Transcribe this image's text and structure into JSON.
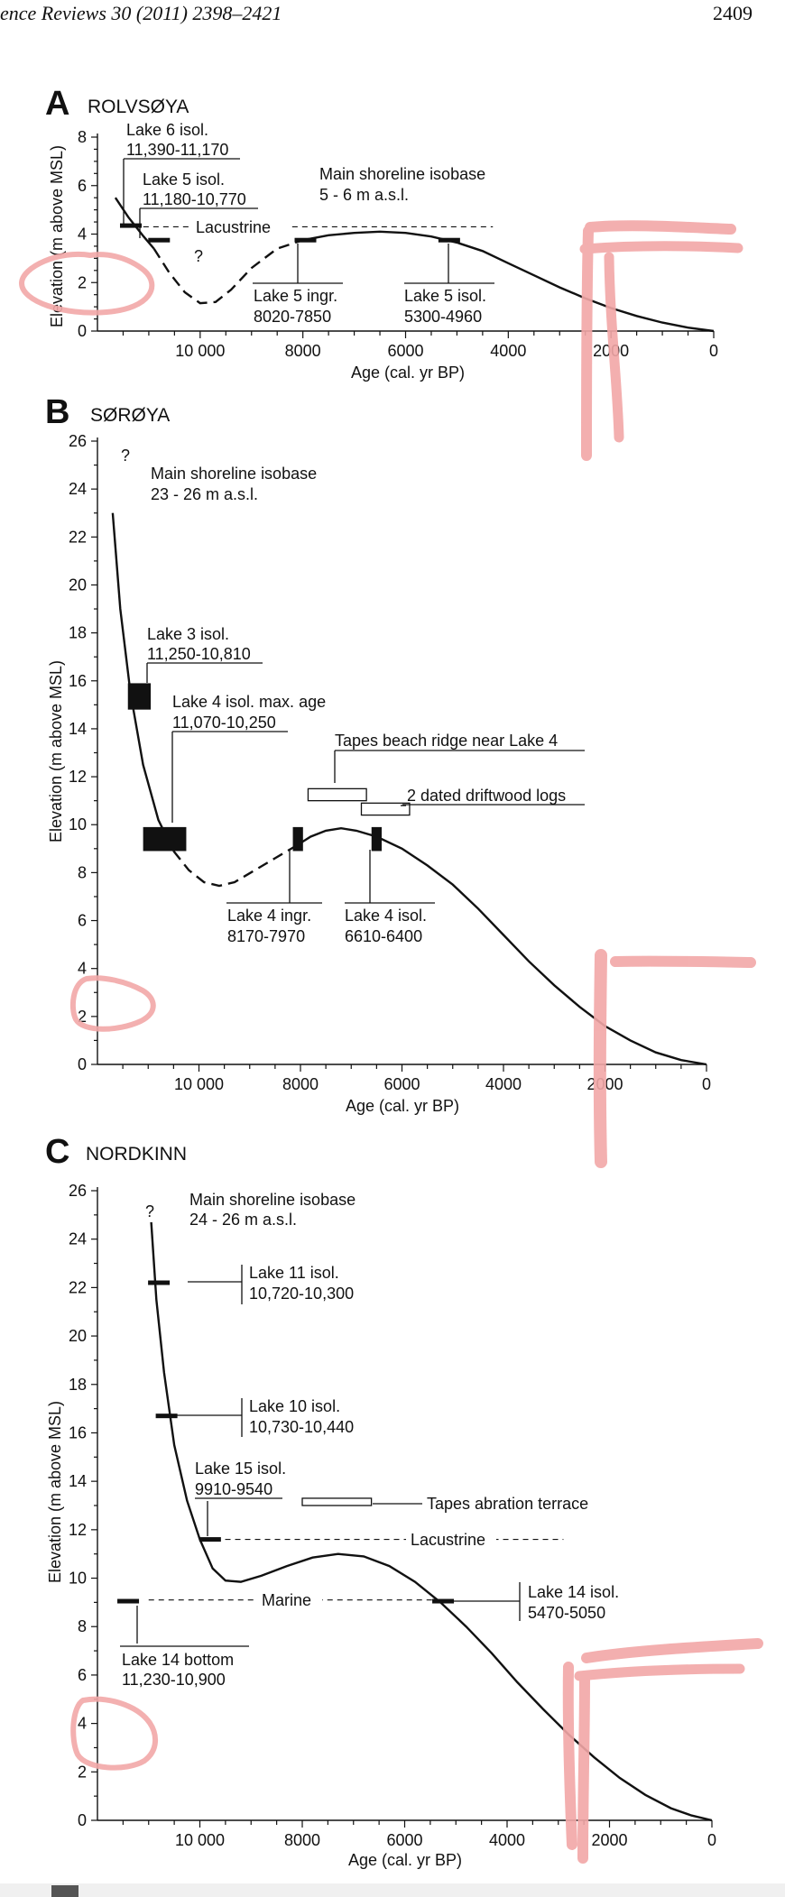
{
  "header": {
    "journal": "ence Reviews 30 (2011) 2398–2421",
    "page_number": "2409"
  },
  "chart_data": [
    {
      "type": "line",
      "panel": "A",
      "title": "ROLVSØYA",
      "xlabel": "Age (cal. yr BP)",
      "ylabel": "Elevation (m above MSL)",
      "xlim": [
        12000,
        0
      ],
      "ylim": [
        0,
        8
      ],
      "x_ticks": [
        10000,
        8000,
        6000,
        4000,
        2000,
        0
      ],
      "x_tick_labels": [
        "10 000",
        "8000",
        "6000",
        "4000",
        "2000",
        "0"
      ],
      "y_ticks": [
        0,
        2,
        4,
        6,
        8
      ],
      "isobase_label": "Main shoreline isobase",
      "isobase_value": "5 - 6 m a.s.l.",
      "curve_solid_1": [
        [
          11650,
          5.5
        ],
        [
          11400,
          4.7
        ],
        [
          11100,
          3.9
        ],
        [
          10900,
          3.4
        ]
      ],
      "curve_dashed": [
        [
          10900,
          3.4
        ],
        [
          10600,
          2.4
        ],
        [
          10300,
          1.6
        ],
        [
          10000,
          1.15
        ],
        [
          9700,
          1.2
        ],
        [
          9400,
          1.7
        ],
        [
          9000,
          2.6
        ],
        [
          8500,
          3.4
        ],
        [
          8000,
          3.75
        ]
      ],
      "curve_solid_2": [
        [
          8000,
          3.75
        ],
        [
          7500,
          3.95
        ],
        [
          7000,
          4.05
        ],
        [
          6500,
          4.1
        ],
        [
          6000,
          4.05
        ],
        [
          5500,
          3.9
        ],
        [
          5000,
          3.65
        ],
        [
          4500,
          3.3
        ],
        [
          4000,
          2.8
        ],
        [
          3500,
          2.3
        ],
        [
          3000,
          1.8
        ],
        [
          2500,
          1.35
        ],
        [
          2000,
          0.95
        ],
        [
          1500,
          0.62
        ],
        [
          1000,
          0.35
        ],
        [
          500,
          0.14
        ],
        [
          0,
          0
        ]
      ],
      "lines": [
        {
          "name": "Lacustrine",
          "y": 4.3,
          "x_from": 11300,
          "x_to": 4300
        }
      ],
      "markers": [
        {
          "x": 11350,
          "y": 4.35
        },
        {
          "x": 10800,
          "y": 3.75
        },
        {
          "x": 7950,
          "y": 3.75
        },
        {
          "x": 5150,
          "y": 3.75
        }
      ],
      "question_marks": [
        "?"
      ],
      "annotations": [
        {
          "name": "Lake 6 isol.",
          "value": "11,390-11,170"
        },
        {
          "name": "Lake 5 isol.",
          "value": "11,180-10,770"
        },
        {
          "name": "Lake 5 ingr.",
          "value": "8020-7850"
        },
        {
          "name": "Lake 5 isol.",
          "value": "5300-4960"
        }
      ],
      "line_labels": [
        "Lacustrine"
      ]
    },
    {
      "type": "line",
      "panel": "B",
      "title": "SØRØYA",
      "xlabel": "Age (cal. yr BP)",
      "ylabel": "Elevation (m above MSL)",
      "xlim": [
        12000,
        0
      ],
      "ylim": [
        0,
        26
      ],
      "x_ticks": [
        10000,
        8000,
        6000,
        4000,
        2000,
        0
      ],
      "x_tick_labels": [
        "10 000",
        "8000",
        "6000",
        "4000",
        "2000",
        "0"
      ],
      "y_ticks": [
        0,
        2,
        4,
        6,
        8,
        10,
        12,
        14,
        16,
        18,
        20,
        22,
        24,
        26
      ],
      "isobase_label": "Main shoreline isobase",
      "isobase_value": "23 - 26 m a.s.l.",
      "curve_solid_1": [
        [
          11700,
          23
        ],
        [
          11550,
          19
        ],
        [
          11350,
          15.5
        ],
        [
          11100,
          12.5
        ],
        [
          10800,
          10.2
        ],
        [
          10500,
          8.9
        ]
      ],
      "curve_dashed": [
        [
          10500,
          8.9
        ],
        [
          10200,
          8.1
        ],
        [
          9900,
          7.6
        ],
        [
          9600,
          7.45
        ],
        [
          9300,
          7.6
        ],
        [
          8900,
          8.1
        ],
        [
          8500,
          8.6
        ],
        [
          8100,
          9.1
        ]
      ],
      "curve_solid_2": [
        [
          8100,
          9.1
        ],
        [
          7800,
          9.5
        ],
        [
          7500,
          9.75
        ],
        [
          7200,
          9.85
        ],
        [
          6900,
          9.75
        ],
        [
          6500,
          9.5
        ],
        [
          6000,
          9.0
        ],
        [
          5500,
          8.3
        ],
        [
          5000,
          7.5
        ],
        [
          4500,
          6.5
        ],
        [
          4000,
          5.4
        ],
        [
          3500,
          4.3
        ],
        [
          3000,
          3.3
        ],
        [
          2500,
          2.4
        ],
        [
          2000,
          1.6
        ],
        [
          1500,
          1.0
        ],
        [
          1000,
          0.5
        ],
        [
          500,
          0.18
        ],
        [
          0,
          0
        ]
      ],
      "filled_boxes": [
        {
          "x_from": 11400,
          "x_to": 10950,
          "y_from": 14.8,
          "y_to": 15.9
        },
        {
          "x_from": 11100,
          "x_to": 10250,
          "y_from": 8.9,
          "y_to": 9.9
        },
        {
          "x_from": 8150,
          "x_to": 7950,
          "y_from": 8.9,
          "y_to": 9.9
        },
        {
          "x_from": 6600,
          "x_to": 6400,
          "y_from": 8.9,
          "y_to": 9.9
        }
      ],
      "open_boxes": [
        {
          "name": "Tapes beach ridge near Lake 4",
          "x_from": 7850,
          "x_to": 6700,
          "y_from": 11.0,
          "y_to": 11.5
        },
        {
          "name": "2 dated driftwood logs",
          "x_from": 6800,
          "x_to": 5850,
          "y_from": 10.4,
          "y_to": 10.9
        }
      ],
      "question_marks": [
        "?"
      ],
      "annotations": [
        {
          "name": "Lake 3 isol.",
          "value": "11,250-10,810"
        },
        {
          "name": "Lake 4 isol. max. age",
          "value": "11,070-10,250"
        },
        {
          "name": "Lake 4 ingr.",
          "value": "8170-7970"
        },
        {
          "name": "Lake 4 isol.",
          "value": "6610-6400"
        }
      ],
      "box_labels": [
        "Tapes beach ridge near Lake 4",
        "2 dated driftwood logs"
      ]
    },
    {
      "type": "line",
      "panel": "C",
      "title": "NORDKINN",
      "xlabel": "Age (cal. yr BP)",
      "ylabel": "Elevation (m above MSL)",
      "xlim": [
        12000,
        0
      ],
      "ylim": [
        0,
        26
      ],
      "x_ticks": [
        10000,
        8000,
        6000,
        4000,
        2000,
        0
      ],
      "x_tick_labels": [
        "10 000",
        "8000",
        "6000",
        "4000",
        "2000",
        "0"
      ],
      "y_ticks": [
        0,
        2,
        4,
        6,
        8,
        10,
        12,
        14,
        16,
        18,
        20,
        22,
        24,
        26
      ],
      "isobase_label": "Main shoreline isobase",
      "isobase_value": "24 - 26 m a.s.l.",
      "curve": [
        [
          10950,
          24.7
        ],
        [
          10850,
          21.5
        ],
        [
          10700,
          18.5
        ],
        [
          10500,
          15.5
        ],
        [
          10250,
          13.2
        ],
        [
          10000,
          11.6
        ],
        [
          9750,
          10.4
        ],
        [
          9500,
          9.9
        ],
        [
          9200,
          9.85
        ],
        [
          8800,
          10.1
        ],
        [
          8300,
          10.5
        ],
        [
          7800,
          10.85
        ],
        [
          7300,
          11.0
        ],
        [
          6800,
          10.9
        ],
        [
          6300,
          10.5
        ],
        [
          5800,
          9.85
        ],
        [
          5300,
          9.0
        ],
        [
          4800,
          8.0
        ],
        [
          4300,
          6.9
        ],
        [
          3800,
          5.7
        ],
        [
          3300,
          4.6
        ],
        [
          2800,
          3.55
        ],
        [
          2300,
          2.6
        ],
        [
          1800,
          1.75
        ],
        [
          1300,
          1.05
        ],
        [
          800,
          0.5
        ],
        [
          400,
          0.2
        ],
        [
          0,
          0
        ]
      ],
      "lines": [
        {
          "name": "Lacustrine",
          "y": 11.6,
          "x_from": 9700,
          "x_to": 2900
        },
        {
          "name": "Marine",
          "y": 9.1,
          "x_from": 11000,
          "x_to": 5350
        }
      ],
      "markers": [
        {
          "x": 10800,
          "y": 22.2
        },
        {
          "x": 10650,
          "y": 16.7
        },
        {
          "x": 9800,
          "y": 11.6
        },
        {
          "x": 5250,
          "y": 9.05
        },
        {
          "x": 11400,
          "y": 9.05
        }
      ],
      "open_boxes": [
        {
          "name": "Tapes abration terrace",
          "x_from": 8000,
          "x_to": 6650,
          "y_from": 13.0,
          "y_to": 13.3
        }
      ],
      "question_marks": [
        "?"
      ],
      "annotations": [
        {
          "name": "Lake 11 isol.",
          "value": "10,720-10,300"
        },
        {
          "name": "Lake 10 isol.",
          "value": "10,730-10,440"
        },
        {
          "name": "Lake 15 isol.",
          "value": "9910-9540"
        },
        {
          "name": "Lake 14 isol.",
          "value": "5470-5050"
        },
        {
          "name": "Lake 14 bottom",
          "value": "11,230-10,900"
        }
      ],
      "box_labels": [
        "Tapes abration terrace"
      ],
      "line_labels": [
        "Lacustrine",
        "Marine"
      ]
    }
  ],
  "highlight_color": "#f2a7a7"
}
